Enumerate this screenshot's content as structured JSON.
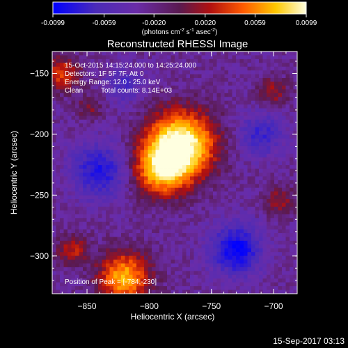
{
  "chart_data": {
    "type": "heatmap",
    "title": "Reconstructed RHESSI Image",
    "xlabel": "Heliocentric X (arcsec)",
    "ylabel": "Heliocentric Y (arcsec)",
    "xlim": [
      -878,
      -681
    ],
    "ylim": [
      -331,
      -132
    ],
    "x_ticks": [
      -850,
      -800,
      -750,
      -700
    ],
    "y_ticks": [
      -150,
      -200,
      -250,
      -300
    ],
    "colorbar": {
      "ticks": [
        "-0.0099",
        "-0.0059",
        "-0.0020",
        "0.0020",
        "0.0059",
        "0.0099"
      ],
      "min": -0.0099,
      "max": 0.0099,
      "unit_prefix": "(photons cm",
      "unit_exp1": "-2",
      "unit_mid1": " s",
      "unit_exp2": "-1",
      "unit_mid2": " asec",
      "unit_exp3": "-2",
      "unit_suffix": ")"
    },
    "colors": [
      "#0000ff",
      "#6a2ca8",
      "#5a1a50",
      "#a01010",
      "#ff5a00",
      "#ffc800",
      "#ffffe0"
    ],
    "blobs": [
      {
        "x": -774,
        "y": -208,
        "r": 26,
        "amp": 1.25
      },
      {
        "x": -790,
        "y": -228,
        "r": 22,
        "amp": 0.9
      },
      {
        "x": -820,
        "y": -318,
        "r": 20,
        "amp": 0.9
      },
      {
        "x": -862,
        "y": -295,
        "r": 12,
        "amp": 0.45
      },
      {
        "x": -870,
        "y": -150,
        "r": 14,
        "amp": 0.55
      },
      {
        "x": -848,
        "y": -178,
        "r": 10,
        "amp": 0.3
      },
      {
        "x": -700,
        "y": -165,
        "r": 12,
        "amp": 0.35
      },
      {
        "x": -695,
        "y": -255,
        "r": 12,
        "amp": 0.35
      },
      {
        "x": -840,
        "y": -230,
        "r": 22,
        "amp": -0.6
      },
      {
        "x": -730,
        "y": -295,
        "r": 20,
        "amp": -0.75
      },
      {
        "x": -710,
        "y": -200,
        "r": 18,
        "amp": -0.45
      },
      {
        "x": -820,
        "y": -160,
        "r": 14,
        "amp": -0.35
      }
    ]
  },
  "annotations": {
    "time_range": "15-Oct-2015 14:15:24.000 to 14:25:24.000",
    "detectors": "Detectors: 1F 5F 7F, Att 0",
    "energy": "Energy Range: 12.0 - 25.0 keV",
    "clean": "Clean",
    "total_counts": "Total counts: 8.14E+03",
    "peak": "Position of Peak = [-784,-230]"
  },
  "footer": {
    "date": "15-Sep-2017 03:13"
  }
}
